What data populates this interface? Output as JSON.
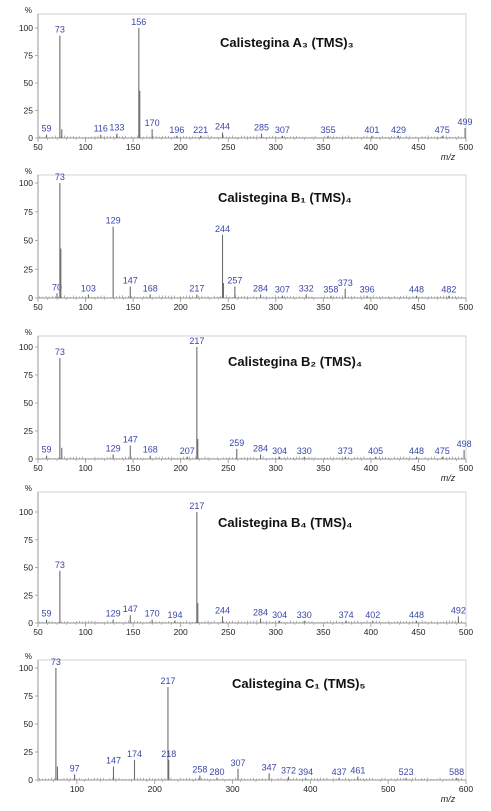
{
  "chart_data": [
    {
      "type": "bar",
      "title": "Calistegina A₃ (TMS)₃",
      "y_unit": "%",
      "xlabel": "m/z",
      "xlim": [
        50,
        500
      ],
      "ylim": [
        0,
        100
      ],
      "xticks": [
        50,
        100,
        150,
        200,
        250,
        300,
        350,
        400,
        450,
        500
      ],
      "yticks": [
        0,
        25,
        50,
        75,
        100
      ],
      "peaks": [
        {
          "mz": 59,
          "value": 3,
          "label": "59"
        },
        {
          "mz": 73,
          "value": 93,
          "label": "73"
        },
        {
          "mz": 75,
          "value": 8
        },
        {
          "mz": 116,
          "value": 3,
          "label": "116"
        },
        {
          "mz": 133,
          "value": 4,
          "label": "133"
        },
        {
          "mz": 156,
          "value": 100,
          "label": "156"
        },
        {
          "mz": 157,
          "value": 43
        },
        {
          "mz": 170,
          "value": 8,
          "label": "170"
        },
        {
          "mz": 196,
          "value": 2,
          "label": "196"
        },
        {
          "mz": 221,
          "value": 2,
          "label": "221"
        },
        {
          "mz": 244,
          "value": 5,
          "label": "244"
        },
        {
          "mz": 285,
          "value": 4,
          "label": "285"
        },
        {
          "mz": 307,
          "value": 2,
          "label": "307"
        },
        {
          "mz": 355,
          "value": 2,
          "label": "355"
        },
        {
          "mz": 401,
          "value": 2,
          "label": "401"
        },
        {
          "mz": 429,
          "value": 2,
          "label": "429"
        },
        {
          "mz": 475,
          "value": 2,
          "label": "475"
        },
        {
          "mz": 499,
          "value": 9,
          "label": "499"
        }
      ]
    },
    {
      "type": "bar",
      "title": "Calistegina B₁ (TMS)₄",
      "y_unit": "%",
      "xlabel": "",
      "xlim": [
        50,
        500
      ],
      "ylim": [
        0,
        100
      ],
      "xticks": [
        50,
        100,
        150,
        200,
        250,
        300,
        350,
        400,
        450,
        500
      ],
      "yticks": [
        0,
        25,
        50,
        75,
        100
      ],
      "peaks": [
        {
          "mz": 70,
          "value": 4,
          "label": "70"
        },
        {
          "mz": 73,
          "value": 100,
          "label": "73"
        },
        {
          "mz": 74,
          "value": 43
        },
        {
          "mz": 103,
          "value": 3,
          "label": "103"
        },
        {
          "mz": 129,
          "value": 62,
          "label": "129"
        },
        {
          "mz": 147,
          "value": 10,
          "label": "147"
        },
        {
          "mz": 168,
          "value": 3,
          "label": "168"
        },
        {
          "mz": 217,
          "value": 3,
          "label": "217"
        },
        {
          "mz": 244,
          "value": 55,
          "label": "244"
        },
        {
          "mz": 245,
          "value": 13
        },
        {
          "mz": 257,
          "value": 10,
          "label": "257"
        },
        {
          "mz": 284,
          "value": 3,
          "label": "284"
        },
        {
          "mz": 307,
          "value": 2,
          "label": "307"
        },
        {
          "mz": 332,
          "value": 3,
          "label": "332"
        },
        {
          "mz": 358,
          "value": 2,
          "label": "358"
        },
        {
          "mz": 373,
          "value": 8,
          "label": "373"
        },
        {
          "mz": 396,
          "value": 2,
          "label": "396"
        },
        {
          "mz": 448,
          "value": 2,
          "label": "448"
        },
        {
          "mz": 482,
          "value": 2,
          "label": "482"
        }
      ]
    },
    {
      "type": "bar",
      "title": "Calistegina B₂ (TMS)₄",
      "y_unit": "%",
      "xlabel": "m/z",
      "xlim": [
        50,
        500
      ],
      "ylim": [
        0,
        100
      ],
      "xticks": [
        50,
        100,
        150,
        200,
        250,
        300,
        350,
        400,
        450,
        500
      ],
      "yticks": [
        0,
        25,
        50,
        75,
        100
      ],
      "peaks": [
        {
          "mz": 59,
          "value": 3,
          "label": "59"
        },
        {
          "mz": 73,
          "value": 90,
          "label": "73"
        },
        {
          "mz": 75,
          "value": 10
        },
        {
          "mz": 129,
          "value": 4,
          "label": "129"
        },
        {
          "mz": 147,
          "value": 12,
          "label": "147"
        },
        {
          "mz": 168,
          "value": 3,
          "label": "168"
        },
        {
          "mz": 207,
          "value": 2,
          "label": "207"
        },
        {
          "mz": 217,
          "value": 100,
          "label": "217"
        },
        {
          "mz": 218,
          "value": 18
        },
        {
          "mz": 259,
          "value": 9,
          "label": "259"
        },
        {
          "mz": 284,
          "value": 4,
          "label": "284"
        },
        {
          "mz": 304,
          "value": 2,
          "label": "304"
        },
        {
          "mz": 330,
          "value": 2,
          "label": "330"
        },
        {
          "mz": 373,
          "value": 2,
          "label": "373"
        },
        {
          "mz": 405,
          "value": 2,
          "label": "405"
        },
        {
          "mz": 448,
          "value": 2,
          "label": "448"
        },
        {
          "mz": 475,
          "value": 2,
          "label": "475"
        },
        {
          "mz": 498,
          "value": 8,
          "label": "498"
        }
      ]
    },
    {
      "type": "bar",
      "title": "Calistegina B₄ (TMS)₄",
      "y_unit": "%",
      "xlabel": "",
      "xlim": [
        50,
        500
      ],
      "ylim": [
        0,
        100
      ],
      "xticks": [
        50,
        100,
        150,
        200,
        250,
        300,
        350,
        400,
        450,
        500
      ],
      "yticks": [
        0,
        25,
        50,
        75,
        100
      ],
      "peaks": [
        {
          "mz": 59,
          "value": 3,
          "label": "59"
        },
        {
          "mz": 73,
          "value": 47,
          "label": "73"
        },
        {
          "mz": 129,
          "value": 3,
          "label": "129"
        },
        {
          "mz": 147,
          "value": 7,
          "label": "147"
        },
        {
          "mz": 170,
          "value": 3,
          "label": "170"
        },
        {
          "mz": 194,
          "value": 2,
          "label": "194"
        },
        {
          "mz": 217,
          "value": 100,
          "label": "217"
        },
        {
          "mz": 218,
          "value": 18
        },
        {
          "mz": 244,
          "value": 6,
          "label": "244"
        },
        {
          "mz": 284,
          "value": 4,
          "label": "284"
        },
        {
          "mz": 304,
          "value": 2,
          "label": "304"
        },
        {
          "mz": 330,
          "value": 2,
          "label": "330"
        },
        {
          "mz": 374,
          "value": 2,
          "label": "374"
        },
        {
          "mz": 402,
          "value": 2,
          "label": "402"
        },
        {
          "mz": 448,
          "value": 2,
          "label": "448"
        },
        {
          "mz": 492,
          "value": 6,
          "label": "492"
        }
      ]
    },
    {
      "type": "bar",
      "title": "Calistegina C₁ (TMS)₅",
      "y_unit": "%",
      "xlabel": "m/z",
      "xlim": [
        50,
        600
      ],
      "ylim": [
        0,
        100
      ],
      "xticks": [
        100,
        200,
        300,
        400,
        500,
        600
      ],
      "yticks": [
        0,
        25,
        50,
        75,
        100
      ],
      "peaks": [
        {
          "mz": 73,
          "value": 100,
          "label": "73"
        },
        {
          "mz": 75,
          "value": 12
        },
        {
          "mz": 97,
          "value": 5,
          "label": "97"
        },
        {
          "mz": 147,
          "value": 12,
          "label": "147"
        },
        {
          "mz": 174,
          "value": 18,
          "label": "174"
        },
        {
          "mz": 217,
          "value": 83,
          "label": "217"
        },
        {
          "mz": 218,
          "value": 18,
          "label": "218"
        },
        {
          "mz": 258,
          "value": 4,
          "label": "258"
        },
        {
          "mz": 280,
          "value": 2,
          "label": "280"
        },
        {
          "mz": 307,
          "value": 10,
          "label": "307"
        },
        {
          "mz": 347,
          "value": 6,
          "label": "347"
        },
        {
          "mz": 372,
          "value": 3,
          "label": "372"
        },
        {
          "mz": 394,
          "value": 2,
          "label": "394"
        },
        {
          "mz": 437,
          "value": 2,
          "label": "437"
        },
        {
          "mz": 461,
          "value": 3,
          "label": "461"
        },
        {
          "mz": 523,
          "value": 2,
          "label": "523"
        },
        {
          "mz": 588,
          "value": 2,
          "label": "588"
        }
      ]
    }
  ],
  "colors": {
    "axis": "#9a9a9a",
    "frame": "#c8c8c8",
    "peak": "#6c6c6c",
    "peak_label": "#3a46a8",
    "text": "#222222"
  }
}
